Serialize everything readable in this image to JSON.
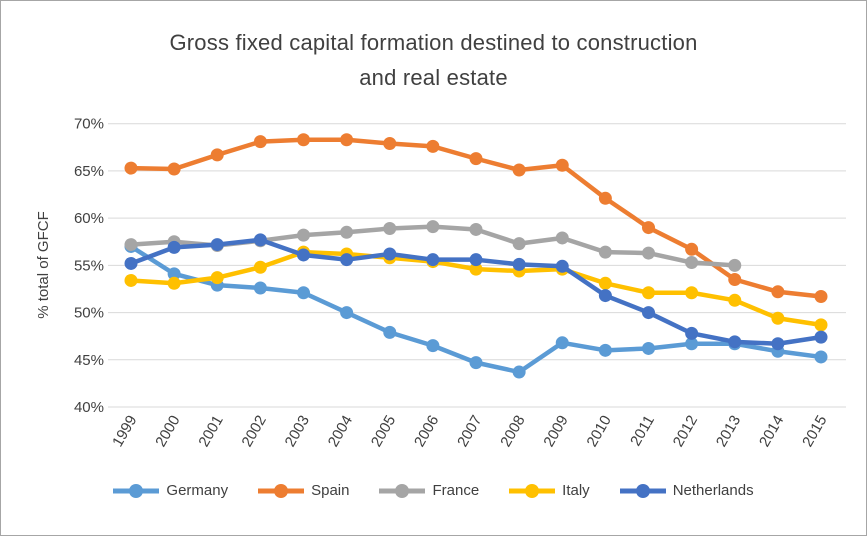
{
  "window": {
    "background": "#ffffff",
    "border_color": "#a6a6a6",
    "text_color": "#404040",
    "gridline_color": "#d9d9d9"
  },
  "chart_data": {
    "type": "line",
    "title": "Gross fixed capital formation destined to construction and real estate",
    "title_lines": [
      "Gross fixed capital formation destined to construction",
      "and real estate"
    ],
    "xlabel": "",
    "ylabel": "% total of GFCF",
    "ylim": [
      40,
      70
    ],
    "grid": true,
    "legend_position": "bottom",
    "y_ticks": [
      {
        "value": 40,
        "label": "40%"
      },
      {
        "value": 45,
        "label": "45%"
      },
      {
        "value": 50,
        "label": "50%"
      },
      {
        "value": 55,
        "label": "55%"
      },
      {
        "value": 60,
        "label": "60%"
      },
      {
        "value": 65,
        "label": "65%"
      },
      {
        "value": 70,
        "label": "70%"
      }
    ],
    "x": [
      1999,
      2000,
      2001,
      2002,
      2003,
      2004,
      2005,
      2006,
      2007,
      2008,
      2009,
      2010,
      2011,
      2012,
      2013,
      2014,
      2015
    ],
    "series": [
      {
        "name": "Germany",
        "color": "#5B9BD5",
        "values": [
          57.0,
          54.1,
          52.9,
          52.6,
          52.1,
          50.0,
          47.9,
          46.5,
          44.7,
          43.7,
          46.8,
          46.0,
          46.2,
          46.7,
          46.7,
          45.9,
          45.3
        ]
      },
      {
        "name": "Spain",
        "color": "#ED7D31",
        "values": [
          65.3,
          65.2,
          66.7,
          68.1,
          68.3,
          68.3,
          67.9,
          67.6,
          66.3,
          65.1,
          65.6,
          62.1,
          59.0,
          56.7,
          53.5,
          52.2,
          51.7
        ]
      },
      {
        "name": "France",
        "color": "#A5A5A5",
        "values": [
          57.2,
          57.5,
          57.1,
          57.6,
          58.2,
          58.5,
          58.9,
          59.1,
          58.8,
          57.3,
          57.9,
          56.4,
          56.3,
          55.3,
          55.0,
          null,
          null
        ]
      },
      {
        "name": "Italy",
        "color": "#FFC000",
        "values": [
          53.4,
          53.1,
          53.7,
          54.8,
          56.4,
          56.2,
          55.8,
          55.4,
          54.6,
          54.4,
          54.6,
          53.1,
          52.1,
          52.1,
          51.3,
          49.4,
          48.7
        ]
      },
      {
        "name": "Netherlands",
        "color": "#4472C4",
        "values": [
          55.2,
          56.9,
          57.2,
          57.7,
          56.1,
          55.6,
          56.2,
          55.6,
          55.6,
          55.1,
          54.9,
          51.8,
          50.0,
          47.8,
          46.9,
          46.7,
          47.4
        ]
      }
    ]
  }
}
